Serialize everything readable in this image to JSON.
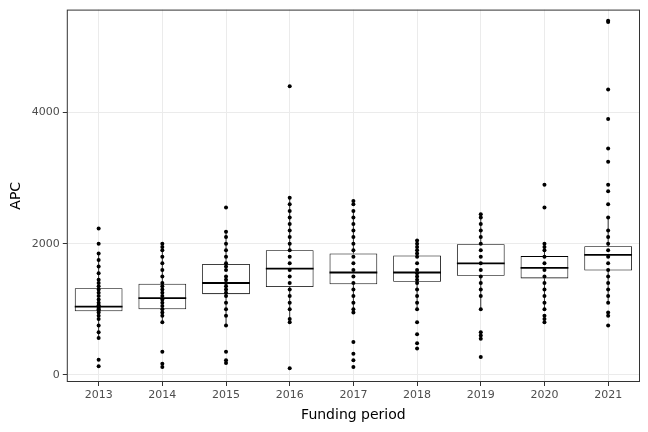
{
  "chart_data": {
    "type": "boxplot",
    "x_label": "Funding period",
    "y_label": "APC",
    "color": "#000000",
    "grid": true,
    "ylim": [
      -110,
      5570
    ],
    "yticks": [
      0,
      2000,
      4000
    ],
    "categories": [
      "2013",
      "2014",
      "2015",
      "2016",
      "2017",
      "2018",
      "2019",
      "2020",
      "2021"
    ],
    "boxes": [
      {
        "q1": 970,
        "median": 1040,
        "q3": 1320,
        "whisker_low": 560,
        "whisker_high": 1850,
        "points": [
          130,
          230,
          560,
          650,
          750,
          850,
          900,
          950,
          980,
          1000,
          1020,
          1040,
          1060,
          1100,
          1150,
          1200,
          1250,
          1300,
          1350,
          1400,
          1450,
          1550,
          1650,
          1750,
          1850,
          2000,
          2230
        ]
      },
      {
        "q1": 1000,
        "median": 1170,
        "q3": 1390,
        "whisker_low": 800,
        "whisker_high": 1950,
        "points": [
          120,
          170,
          350,
          800,
          900,
          950,
          1000,
          1050,
          1100,
          1150,
          1200,
          1250,
          1300,
          1350,
          1400,
          1500,
          1600,
          1700,
          1800,
          1900,
          1950,
          2000
        ]
      },
      {
        "q1": 1230,
        "median": 1400,
        "q3": 1690,
        "whisker_low": 750,
        "whisker_high": 2180,
        "points": [
          180,
          220,
          350,
          750,
          900,
          1000,
          1100,
          1200,
          1250,
          1300,
          1350,
          1400,
          1450,
          1500,
          1600,
          1650,
          1700,
          1800,
          1900,
          2000,
          2100,
          2180,
          2550
        ]
      },
      {
        "q1": 1340,
        "median": 1620,
        "q3": 1900,
        "whisker_low": 800,
        "whisker_high": 2700,
        "points": [
          100,
          800,
          850,
          1000,
          1100,
          1200,
          1300,
          1400,
          1500,
          1600,
          1700,
          1800,
          1900,
          2000,
          2100,
          2200,
          2300,
          2400,
          2500,
          2600,
          2700,
          4400
        ]
      },
      {
        "q1": 1380,
        "median": 1560,
        "q3": 1850,
        "whisker_low": 950,
        "whisker_high": 2500,
        "points": [
          120,
          220,
          320,
          500,
          950,
          1000,
          1100,
          1200,
          1300,
          1400,
          1500,
          1600,
          1700,
          1800,
          1900,
          2000,
          2100,
          2200,
          2300,
          2400,
          2500,
          2600,
          2650
        ]
      },
      {
        "q1": 1420,
        "median": 1560,
        "q3": 1820,
        "whisker_low": 1000,
        "whisker_high": 2050,
        "points": [
          400,
          480,
          620,
          800,
          1000,
          1100,
          1200,
          1300,
          1400,
          1450,
          1500,
          1550,
          1600,
          1700,
          1800,
          1850,
          1900,
          1950,
          2000,
          2050
        ]
      },
      {
        "q1": 1510,
        "median": 1700,
        "q3": 1990,
        "whisker_low": 1000,
        "whisker_high": 2450,
        "points": [
          270,
          550,
          600,
          650,
          1000,
          1200,
          1300,
          1400,
          1500,
          1600,
          1700,
          1800,
          1900,
          2000,
          2100,
          2200,
          2300,
          2400,
          2450
        ]
      },
      {
        "q1": 1470,
        "median": 1630,
        "q3": 1810,
        "whisker_low": 1000,
        "whisker_high": 2000,
        "points": [
          800,
          850,
          900,
          1000,
          1100,
          1200,
          1300,
          1400,
          1500,
          1600,
          1700,
          1800,
          1900,
          1950,
          2000,
          2550,
          2900
        ]
      },
      {
        "q1": 1590,
        "median": 1830,
        "q3": 1960,
        "whisker_low": 1100,
        "whisker_high": 2400,
        "points": [
          750,
          900,
          950,
          1100,
          1200,
          1300,
          1400,
          1500,
          1600,
          1700,
          1800,
          1900,
          2000,
          2100,
          2200,
          2400,
          2600,
          2800,
          2900,
          3250,
          3450,
          3900,
          4350,
          5380,
          5400
        ]
      }
    ]
  }
}
